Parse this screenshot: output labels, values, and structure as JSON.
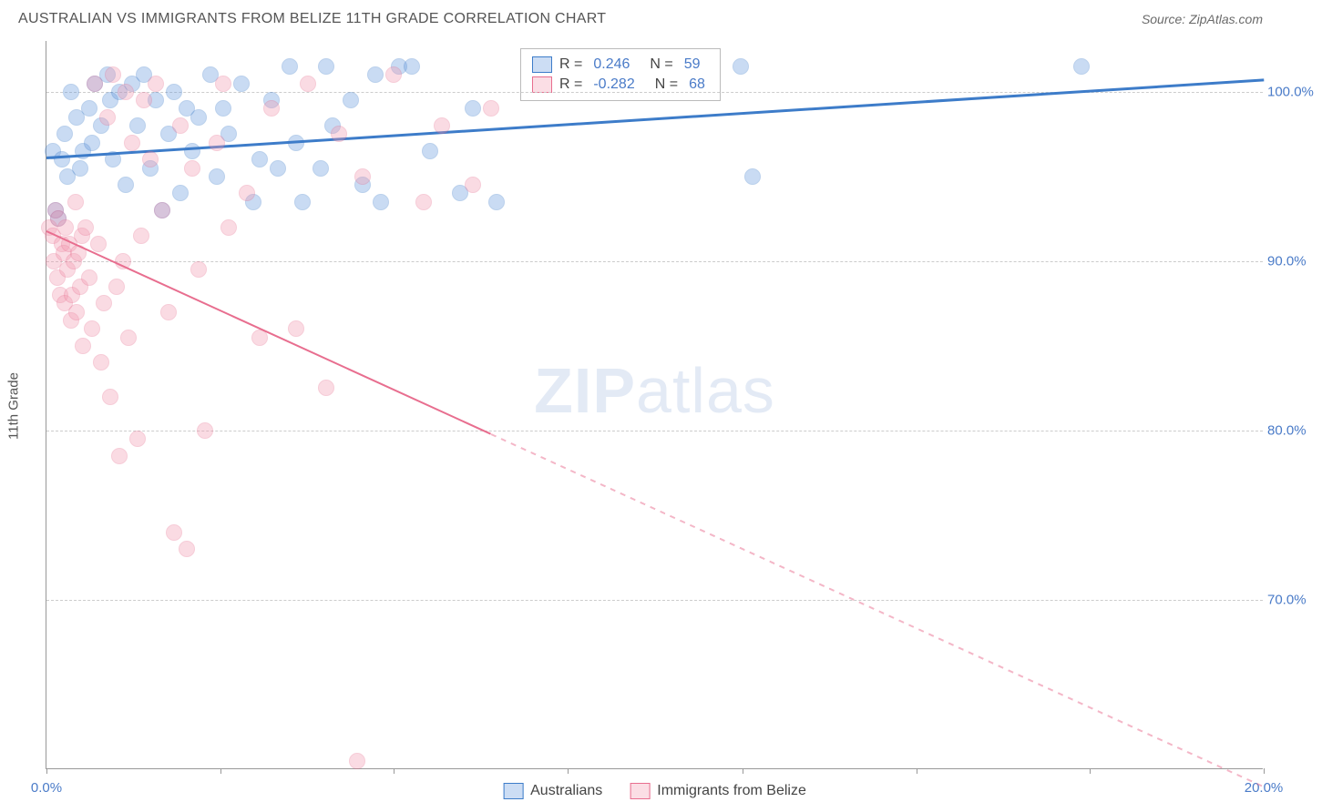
{
  "header": {
    "title": "AUSTRALIAN VS IMMIGRANTS FROM BELIZE 11TH GRADE CORRELATION CHART",
    "source": "Source: ZipAtlas.com"
  },
  "chart": {
    "type": "scatter",
    "y_axis_label": "11th Grade",
    "background_color": "#ffffff",
    "grid_color": "#cccccc",
    "axis_color": "#999999",
    "xlim": [
      0,
      20
    ],
    "ylim": [
      60,
      103
    ],
    "y_ticks": [
      70,
      80,
      90,
      100
    ],
    "y_tick_labels": [
      "70.0%",
      "80.0%",
      "90.0%",
      "100.0%"
    ],
    "x_ticks": [
      0,
      2.86,
      5.71,
      8.57,
      11.43,
      14.29,
      17.14,
      20
    ],
    "x_tick_labels": [
      "0.0%",
      "",
      "",
      "",
      "",
      "",
      "",
      "20.0%"
    ],
    "point_radius": 9,
    "point_fill_opacity": 0.35,
    "point_stroke_opacity": 0.8,
    "series": [
      {
        "name": "Australians",
        "color": "#6699dd",
        "stroke": "#3d7cc9",
        "r_value": "0.246",
        "n_value": "59",
        "trend": {
          "x1": 0,
          "y1": 96.2,
          "x2": 20,
          "y2": 100.8,
          "width": 2.5,
          "dashed_from_x": null
        },
        "points": [
          [
            0.1,
            96.5
          ],
          [
            0.2,
            92.5
          ],
          [
            0.25,
            96.0
          ],
          [
            0.3,
            97.5
          ],
          [
            0.35,
            95.0
          ],
          [
            0.4,
            100.0
          ],
          [
            0.5,
            98.5
          ],
          [
            0.55,
            95.5
          ],
          [
            0.6,
            96.5
          ],
          [
            0.7,
            99.0
          ],
          [
            0.75,
            97.0
          ],
          [
            0.8,
            100.5
          ],
          [
            0.9,
            98.0
          ],
          [
            1.0,
            101.0
          ],
          [
            1.05,
            99.5
          ],
          [
            1.1,
            96.0
          ],
          [
            1.2,
            100.0
          ],
          [
            1.3,
            94.5
          ],
          [
            1.4,
            100.5
          ],
          [
            1.5,
            98.0
          ],
          [
            1.6,
            101.0
          ],
          [
            1.7,
            95.5
          ],
          [
            1.8,
            99.5
          ],
          [
            1.9,
            93.0
          ],
          [
            2.0,
            97.5
          ],
          [
            2.1,
            100.0
          ],
          [
            2.2,
            94.0
          ],
          [
            2.3,
            99.0
          ],
          [
            2.4,
            96.5
          ],
          [
            2.5,
            98.5
          ],
          [
            2.7,
            101.0
          ],
          [
            2.8,
            95.0
          ],
          [
            2.9,
            99.0
          ],
          [
            3.0,
            97.5
          ],
          [
            3.2,
            100.5
          ],
          [
            3.4,
            93.5
          ],
          [
            3.5,
            96.0
          ],
          [
            3.7,
            99.5
          ],
          [
            3.8,
            95.5
          ],
          [
            4.0,
            101.5
          ],
          [
            4.1,
            97.0
          ],
          [
            4.2,
            93.5
          ],
          [
            4.5,
            95.5
          ],
          [
            4.6,
            101.5
          ],
          [
            4.7,
            98.0
          ],
          [
            5.0,
            99.5
          ],
          [
            5.2,
            94.5
          ],
          [
            5.4,
            101.0
          ],
          [
            5.5,
            93.5
          ],
          [
            5.8,
            101.5
          ],
          [
            6.0,
            101.5
          ],
          [
            6.3,
            96.5
          ],
          [
            6.8,
            94.0
          ],
          [
            7.0,
            99.0
          ],
          [
            7.4,
            93.5
          ],
          [
            11.4,
            101.5
          ],
          [
            11.6,
            95.0
          ],
          [
            17.0,
            101.5
          ],
          [
            0.15,
            93.0
          ]
        ]
      },
      {
        "name": "Immigrants from Belize",
        "color": "#f29bb1",
        "stroke": "#e86e8f",
        "r_value": "-0.282",
        "n_value": "68",
        "trend": {
          "x1": 0,
          "y1": 91.8,
          "x2": 20,
          "y2": 59.0,
          "width": 2,
          "dashed_from_x": 7.3
        },
        "points": [
          [
            0.05,
            92.0
          ],
          [
            0.1,
            91.5
          ],
          [
            0.12,
            90.0
          ],
          [
            0.15,
            93.0
          ],
          [
            0.18,
            89.0
          ],
          [
            0.2,
            92.5
          ],
          [
            0.22,
            88.0
          ],
          [
            0.25,
            91.0
          ],
          [
            0.28,
            90.5
          ],
          [
            0.3,
            87.5
          ],
          [
            0.32,
            92.0
          ],
          [
            0.35,
            89.5
          ],
          [
            0.38,
            91.0
          ],
          [
            0.4,
            86.5
          ],
          [
            0.42,
            88.0
          ],
          [
            0.45,
            90.0
          ],
          [
            0.48,
            93.5
          ],
          [
            0.5,
            87.0
          ],
          [
            0.52,
            90.5
          ],
          [
            0.55,
            88.5
          ],
          [
            0.58,
            91.5
          ],
          [
            0.6,
            85.0
          ],
          [
            0.65,
            92.0
          ],
          [
            0.7,
            89.0
          ],
          [
            0.75,
            86.0
          ],
          [
            0.8,
            100.5
          ],
          [
            0.85,
            91.0
          ],
          [
            0.9,
            84.0
          ],
          [
            0.95,
            87.5
          ],
          [
            1.0,
            98.5
          ],
          [
            1.05,
            82.0
          ],
          [
            1.1,
            101.0
          ],
          [
            1.15,
            88.5
          ],
          [
            1.2,
            78.5
          ],
          [
            1.25,
            90.0
          ],
          [
            1.3,
            100.0
          ],
          [
            1.35,
            85.5
          ],
          [
            1.4,
            97.0
          ],
          [
            1.5,
            79.5
          ],
          [
            1.55,
            91.5
          ],
          [
            1.6,
            99.5
          ],
          [
            1.7,
            96.0
          ],
          [
            1.8,
            100.5
          ],
          [
            1.9,
            93.0
          ],
          [
            2.0,
            87.0
          ],
          [
            2.1,
            74.0
          ],
          [
            2.2,
            98.0
          ],
          [
            2.3,
            73.0
          ],
          [
            2.4,
            95.5
          ],
          [
            2.5,
            89.5
          ],
          [
            2.6,
            80.0
          ],
          [
            2.8,
            97.0
          ],
          [
            2.9,
            100.5
          ],
          [
            3.0,
            92.0
          ],
          [
            3.3,
            94.0
          ],
          [
            3.5,
            85.5
          ],
          [
            3.7,
            99.0
          ],
          [
            4.1,
            86.0
          ],
          [
            4.3,
            100.5
          ],
          [
            4.6,
            82.5
          ],
          [
            4.8,
            97.5
          ],
          [
            5.1,
            60.5
          ],
          [
            5.2,
            95.0
          ],
          [
            5.7,
            101.0
          ],
          [
            6.2,
            93.5
          ],
          [
            6.5,
            98.0
          ],
          [
            7.0,
            94.5
          ],
          [
            7.3,
            99.0
          ]
        ]
      }
    ]
  },
  "legend": {
    "r_label": "R =",
    "n_label": "N ="
  },
  "bottom_legend": {
    "items": [
      "Australians",
      "Immigrants from Belize"
    ]
  },
  "watermark": {
    "part1": "ZIP",
    "part2": "atlas"
  }
}
